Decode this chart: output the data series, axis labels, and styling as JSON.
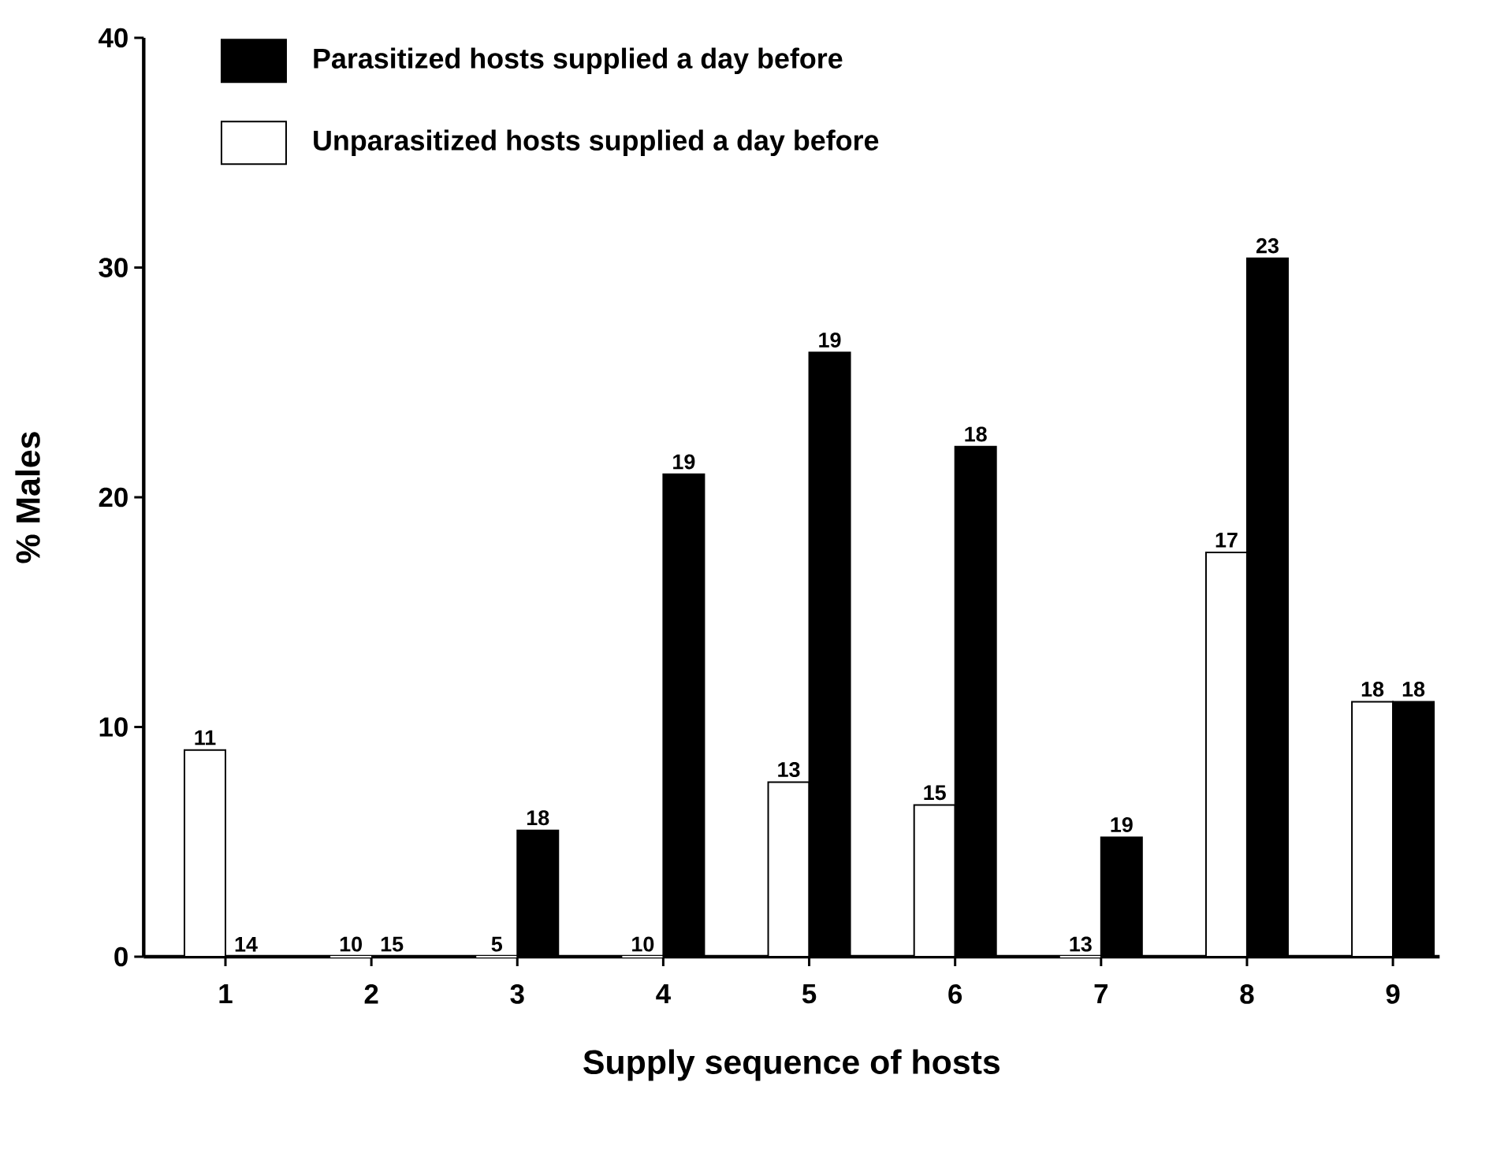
{
  "chart_data": {
    "type": "bar",
    "xlabel": "Supply sequence of hosts",
    "ylabel": "% Males",
    "categories": [
      "1",
      "2",
      "3",
      "4",
      "5",
      "6",
      "7",
      "8",
      "9"
    ],
    "series": [
      {
        "name": "Unparasitized hosts supplied a day before",
        "color": "#ffffff",
        "values": [
          9.0,
          0,
          0,
          0,
          7.6,
          6.6,
          0,
          17.6,
          11.1
        ]
      },
      {
        "name": "Parasitized hosts supplied a day before",
        "color": "#000000",
        "values": [
          0,
          0,
          5.5,
          21.0,
          26.3,
          22.2,
          5.2,
          30.4,
          11.1
        ]
      }
    ],
    "annotations": [
      {
        "text": "11",
        "x": "1",
        "y": 9.0
      },
      {
        "text": "14",
        "x": "1",
        "y": 0
      },
      {
        "text": "10",
        "x": "2",
        "y": 0
      },
      {
        "text": "15",
        "x": "2",
        "y": 0
      },
      {
        "text": "5",
        "x": "3",
        "y": 0
      },
      {
        "text": "18",
        "x": "3",
        "y": 5.5
      },
      {
        "text": "10",
        "x": "4",
        "y": 0
      },
      {
        "text": "19",
        "x": "4",
        "y": 21.0
      },
      {
        "text": "13",
        "x": "5",
        "y": 7.6
      },
      {
        "text": "19",
        "x": "5",
        "y": 26.3
      },
      {
        "text": "15",
        "x": "6",
        "y": 6.6
      },
      {
        "text": "18",
        "x": "6",
        "y": 22.2
      },
      {
        "text": "13",
        "x": "7",
        "y": 0
      },
      {
        "text": "19",
        "x": "7",
        "y": 5.2
      },
      {
        "text": "17",
        "x": "8",
        "y": 17.6
      },
      {
        "text": "23",
        "x": "8",
        "y": 30.4
      },
      {
        "text": "18",
        "x": "9",
        "y": 11.1
      },
      {
        "text": "18",
        "x": "9",
        "y": 11.1
      }
    ],
    "ylim": [
      0,
      40
    ],
    "yticks": [
      0,
      10,
      20,
      30,
      40
    ],
    "grid": false,
    "legend": "top left"
  }
}
